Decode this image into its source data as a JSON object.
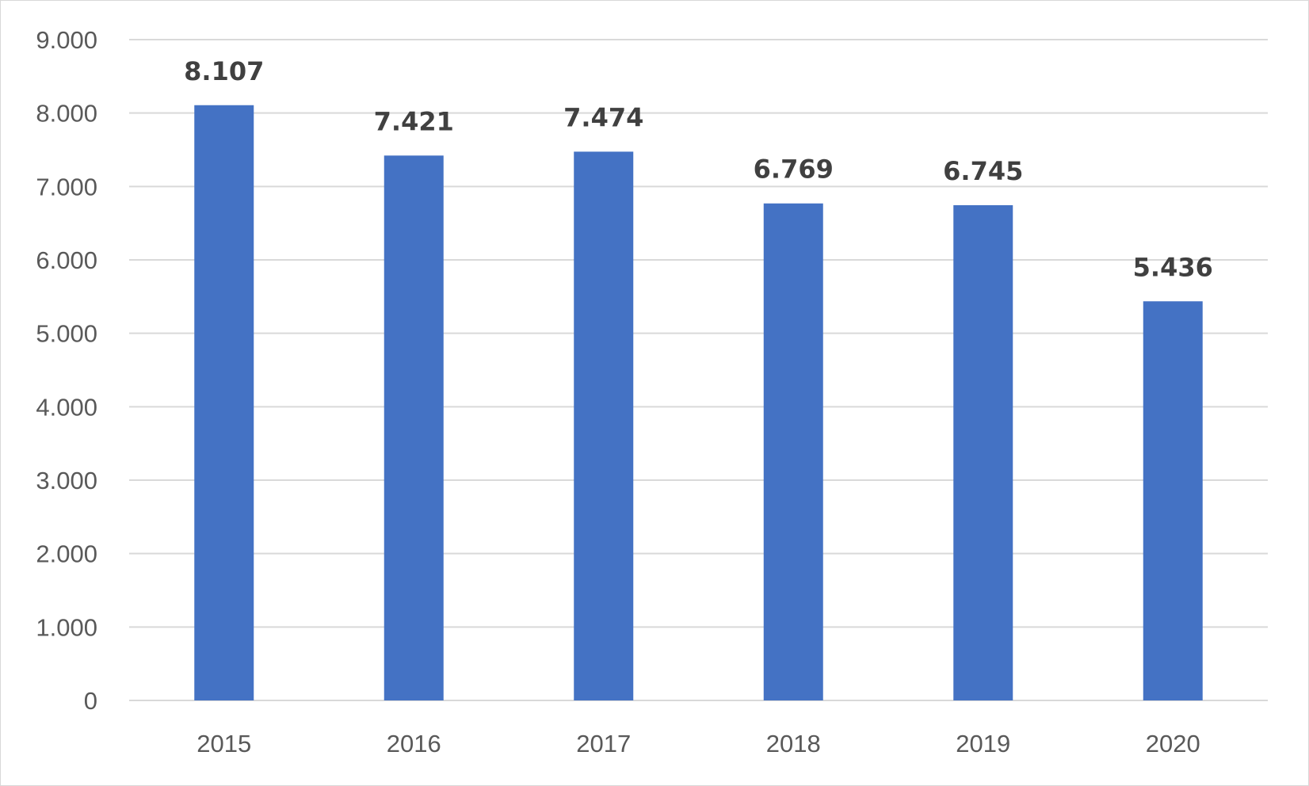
{
  "chart_data": {
    "type": "bar",
    "title": "",
    "xlabel": "",
    "ylabel": "",
    "categories": [
      "2015",
      "2016",
      "2017",
      "2018",
      "2019",
      "2020"
    ],
    "values": [
      8107,
      7421,
      7474,
      6769,
      6745,
      5436
    ],
    "value_labels": [
      "8.107",
      "7.421",
      "7.474",
      "6.769",
      "6.745",
      "5.436"
    ],
    "ylim": [
      0,
      9000
    ],
    "y_ticks": [
      0,
      1000,
      2000,
      3000,
      4000,
      5000,
      6000,
      7000,
      8000,
      9000
    ],
    "y_tick_labels": [
      "0",
      "1.000",
      "2.000",
      "3.000",
      "4.000",
      "5.000",
      "6.000",
      "7.000",
      "8.000",
      "9.000"
    ],
    "grid": true,
    "legend": "none",
    "bar_color": "#4472c4",
    "grid_color": "#d9d9d9",
    "tick_label_color": "#595959",
    "data_label_color": "#404040"
  }
}
